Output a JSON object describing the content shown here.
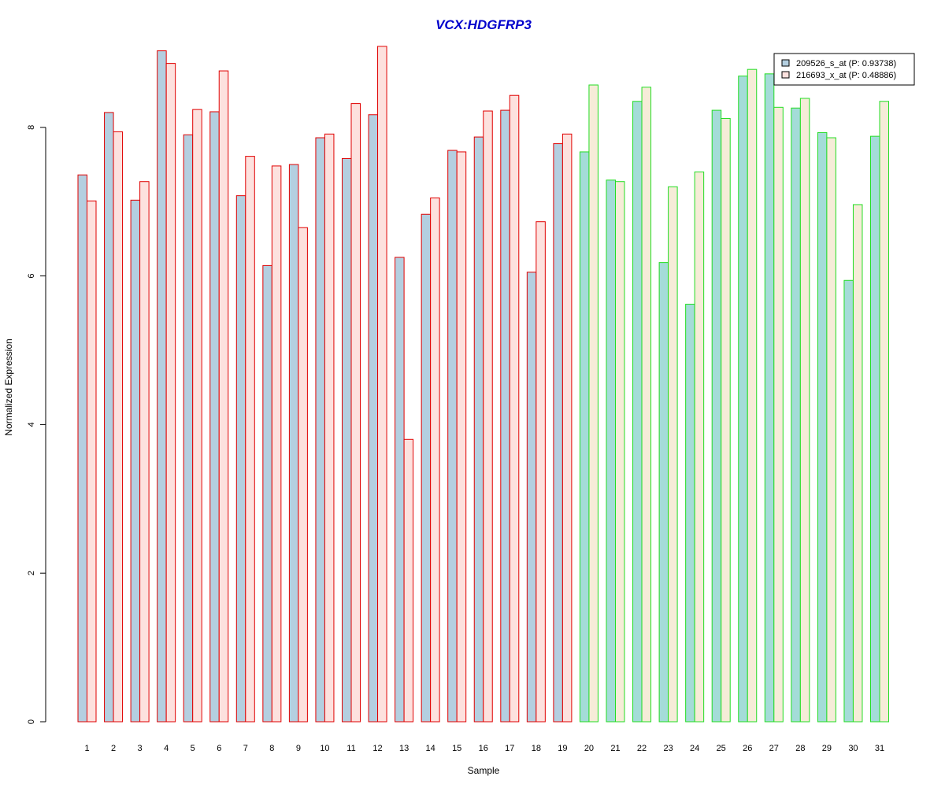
{
  "chart_data": {
    "type": "bar",
    "title": "VCX:HDGFRP3",
    "xlabel": "Sample",
    "ylabel": "Normalized Expression",
    "ylim": [
      0,
      9.2
    ],
    "yticks": [
      0,
      2,
      4,
      6,
      8
    ],
    "categories": [
      "1",
      "2",
      "3",
      "4",
      "5",
      "6",
      "7",
      "8",
      "9",
      "10",
      "11",
      "12",
      "13",
      "14",
      "15",
      "16",
      "17",
      "18",
      "19",
      "20",
      "21",
      "22",
      "23",
      "24",
      "25",
      "26",
      "27",
      "28",
      "29",
      "30",
      "31"
    ],
    "series": [
      {
        "name": "209526_s_at (P: 0.93738)",
        "values": [
          7.36,
          8.2,
          7.02,
          9.03,
          7.9,
          8.21,
          7.08,
          6.14,
          7.5,
          7.86,
          7.58,
          8.17,
          6.25,
          6.83,
          7.69,
          7.87,
          8.23,
          6.05,
          7.78,
          7.67,
          7.29,
          8.35,
          6.18,
          5.62,
          8.23,
          8.69,
          8.72,
          8.26,
          7.93,
          5.94,
          7.88
        ]
      },
      {
        "name": "216693_x_at (P: 0.48886)",
        "values": [
          7.01,
          7.94,
          7.27,
          8.86,
          8.24,
          8.76,
          7.61,
          7.48,
          6.65,
          7.91,
          8.32,
          9.09,
          3.8,
          7.05,
          7.67,
          8.22,
          8.43,
          6.73,
          7.91,
          8.57,
          7.27,
          8.54,
          7.2,
          7.4,
          8.12,
          8.78,
          8.27,
          8.39,
          7.86,
          6.96,
          8.35
        ]
      }
    ],
    "groups": [
      {
        "range": [
          1,
          19
        ],
        "border_color": "#e00000",
        "fill_colors": [
          "#b4cfe0",
          "#fde1de"
        ]
      },
      {
        "range": [
          20,
          31
        ],
        "border_color": "#22dd22",
        "fill_colors": [
          "#a4dcd8",
          "#f6ecd8"
        ]
      }
    ],
    "legend_placement": "top-right",
    "legend_fill_colors": [
      "#b4cfe0",
      "#fde1de"
    ],
    "title_color": "#0000cc",
    "grid": false
  }
}
